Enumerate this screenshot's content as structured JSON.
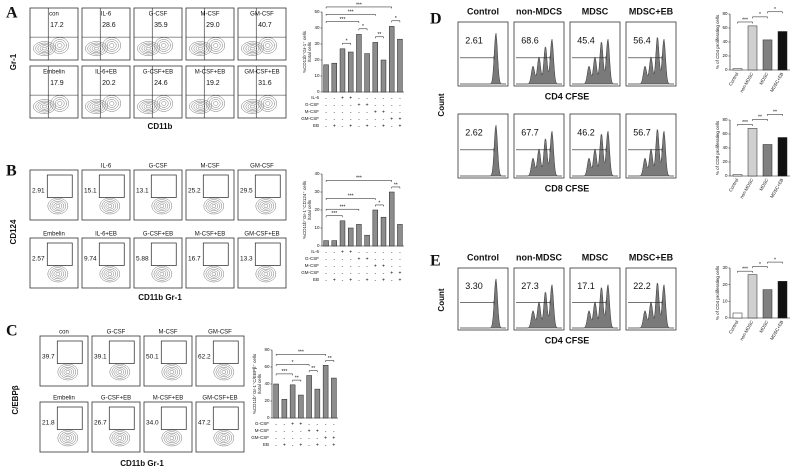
{
  "panels": [
    {
      "letter": "A",
      "y_label": "Gr-1",
      "x_label": "CD11b",
      "rows": [
        [
          {
            "label": "con",
            "value": "17.2"
          },
          {
            "label": "IL-6",
            "value": "28.6"
          },
          {
            "label": "G-CSF",
            "value": "35.9"
          },
          {
            "label": "M-CSF",
            "value": "29.0"
          },
          {
            "label": "GM-CSF",
            "value": "40.7"
          }
        ],
        [
          {
            "label": "Embelin",
            "value": "17.9"
          },
          {
            "label": "IL-6+EB",
            "value": "20.2"
          },
          {
            "label": "G-CSF+EB",
            "value": "24.6"
          },
          {
            "label": "M-CSF+EB",
            "value": "19.2"
          },
          {
            "label": "GM-CSF+EB",
            "value": "31.6"
          }
        ]
      ],
      "chart": {
        "type": "bar",
        "y_label": [
          "%CD11b⁺Gr-1⁺ cells",
          "/total cells"
        ],
        "values": [
          17,
          18,
          27,
          25,
          36,
          24,
          31,
          20,
          41,
          33
        ],
        "color": "#8c8c8c",
        "ylim": [
          0,
          50
        ],
        "yticks": [
          0,
          10,
          20,
          30,
          40,
          50
        ],
        "treatments": [
          {
            "name": "IL-6",
            "signs": [
              "-",
              "-",
              "+",
              "+",
              "-",
              "-",
              "-",
              "-",
              "-",
              "-"
            ]
          },
          {
            "name": "G-CSF",
            "signs": [
              "-",
              "-",
              "-",
              "-",
              "+",
              "+",
              "-",
              "-",
              "-",
              "-"
            ]
          },
          {
            "name": "M-CSF",
            "signs": [
              "-",
              "-",
              "-",
              "-",
              "-",
              "-",
              "+",
              "+",
              "-",
              "-"
            ]
          },
          {
            "name": "GM-CSF",
            "signs": [
              "-",
              "-",
              "-",
              "-",
              "-",
              "-",
              "-",
              "-",
              "+",
              "+"
            ]
          },
          {
            "name": "EB",
            "signs": [
              "-",
              "+",
              "-",
              "+",
              "-",
              "+",
              "-",
              "+",
              "-",
              "+"
            ]
          }
        ],
        "significance": [
          "***",
          "***",
          "***",
          "*",
          "*",
          "**",
          "*"
        ]
      }
    },
    {
      "letter": "B",
      "y_label": "CD124",
      "x_label": "CD11b Gr-1",
      "rows": [
        [
          {
            "value": "2.91"
          },
          {
            "label": "IL-6",
            "value": "15.1"
          },
          {
            "label": "G-CSF",
            "value": "13.1"
          },
          {
            "label": "M-CSF",
            "value": "25.2"
          },
          {
            "label": "GM-CSF",
            "value": "29.5"
          }
        ],
        [
          {
            "label": "Embelin",
            "value": "2.57"
          },
          {
            "label": "IL-6+EB",
            "value": "9.74"
          },
          {
            "label": "G-CSF+EB",
            "value": "5.88"
          },
          {
            "label": "M-CSF+EB",
            "value": "16.7"
          },
          {
            "label": "GM-CSF+EB",
            "value": "13.3"
          }
        ]
      ],
      "chart": {
        "type": "bar",
        "y_label": [
          "%CD11b⁺Gr-1⁺CD124⁺ cells",
          "/total cells"
        ],
        "values": [
          3,
          3,
          14,
          10,
          12,
          6,
          20,
          16,
          30,
          12
        ],
        "color": "#8c8c8c",
        "ylim": [
          0,
          40
        ],
        "yticks": [
          0,
          10,
          20,
          30,
          40
        ],
        "treatments": [
          {
            "name": "IL-6",
            "signs": [
              "-",
              "-",
              "+",
              "+",
              "-",
              "-",
              "-",
              "-",
              "-",
              "-"
            ]
          },
          {
            "name": "G-CSF",
            "signs": [
              "-",
              "-",
              "-",
              "-",
              "+",
              "+",
              "-",
              "-",
              "-",
              "-"
            ]
          },
          {
            "name": "M-CSF",
            "signs": [
              "-",
              "-",
              "-",
              "-",
              "-",
              "-",
              "+",
              "+",
              "-",
              "-"
            ]
          },
          {
            "name": "GM-CSF",
            "signs": [
              "-",
              "-",
              "-",
              "-",
              "-",
              "-",
              "-",
              "-",
              "+",
              "+"
            ]
          },
          {
            "name": "EB",
            "signs": [
              "-",
              "+",
              "-",
              "+",
              "-",
              "+",
              "-",
              "+",
              "-",
              "+"
            ]
          }
        ],
        "significance": [
          "***",
          "**",
          "***",
          "***",
          "***",
          "*"
        ]
      }
    },
    {
      "letter": "C",
      "y_label": "C/EBPβ",
      "x_label": "CD11b Gr-1",
      "rows": [
        [
          {
            "label": "con",
            "value": "39.7"
          },
          {
            "label": "G-CSF",
            "value": "39.1"
          },
          {
            "label": "M-CSF",
            "value": "50.1"
          },
          {
            "label": "GM-CSF",
            "value": "62.2"
          }
        ],
        [
          {
            "label": "Embelin",
            "value": "21.8"
          },
          {
            "label": "G-CSF+EB",
            "value": "26.7"
          },
          {
            "label": "M-CSF+EB",
            "value": "34.0"
          },
          {
            "label": "GM-CSF+EB",
            "value": "47.2"
          }
        ]
      ],
      "chart": {
        "type": "bar",
        "y_label": [
          "%CD11b⁺Gr-1⁺C/EBPβ⁺ cells",
          "/total cells"
        ],
        "values": [
          40,
          22,
          39,
          27,
          50,
          34,
          62,
          47
        ],
        "color": "#8c8c8c",
        "ylim": [
          0,
          80
        ],
        "yticks": [
          0,
          20,
          40,
          60,
          80
        ],
        "treatments": [
          {
            "name": "G-CSF",
            "signs": [
              "-",
              "-",
              "+",
              "+",
              "-",
              "-",
              "-",
              "-"
            ]
          },
          {
            "name": "M-CSF",
            "signs": [
              "-",
              "-",
              "-",
              "-",
              "+",
              "+",
              "-",
              "-"
            ]
          },
          {
            "name": "GM-CSF",
            "signs": [
              "-",
              "-",
              "-",
              "-",
              "-",
              "-",
              "+",
              "+"
            ]
          },
          {
            "name": "EB",
            "signs": [
              "-",
              "+",
              "-",
              "+",
              "-",
              "+",
              "-",
              "+"
            ]
          }
        ],
        "significance": [
          "***",
          "*",
          "***",
          "**",
          "**",
          "**"
        ]
      }
    },
    {
      "letter": "D",
      "y_label": "Count",
      "headers": [
        "Control",
        "non-MDCS",
        "MDSC",
        "MDSC+EB"
      ],
      "rows": [
        {
          "values": [
            "2.61",
            "68.6",
            "45.4",
            "56.4"
          ],
          "x_label": "CD4 CFSE",
          "chart": {
            "type": "bar",
            "y_label": [
              "% of CD4 proliferating cells"
            ],
            "categories": [
              "Control",
              "non-MDSC",
              "MDSC",
              "MDSC+EB"
            ],
            "values": [
              2,
              63,
              43,
              55
            ],
            "colors": [
              "#ffffff",
              "#d0d0d0",
              "#808080",
              "#111111"
            ],
            "ylim": [
              0,
              80
            ],
            "yticks": [
              0,
              20,
              40,
              60,
              80
            ],
            "significance": [
              "***",
              "*",
              "*"
            ]
          }
        },
        {
          "values": [
            "2.62",
            "67.7",
            "46.2",
            "56.7"
          ],
          "x_label": "CD8 CFSE",
          "chart": {
            "type": "bar",
            "y_label": [
              "% of CD8 proliferating cells"
            ],
            "categories": [
              "Control",
              "non-MDSC",
              "MDSC",
              "MDSC+EB"
            ],
            "values": [
              2,
              68,
              45,
              55
            ],
            "colors": [
              "#ffffff",
              "#d0d0d0",
              "#808080",
              "#111111"
            ],
            "ylim": [
              0,
              80
            ],
            "yticks": [
              0,
              20,
              40,
              60,
              80
            ],
            "significance": [
              "***",
              "**",
              "**"
            ]
          }
        }
      ]
    },
    {
      "letter": "E",
      "y_label": "Count",
      "headers": [
        "Control",
        "non-MDSC",
        "MDSC",
        "MDSC+EB"
      ],
      "rows": [
        {
          "values": [
            "3.30",
            "27.3",
            "17.1",
            "22.2"
          ],
          "x_label": "CD4 CFSE",
          "chart": {
            "type": "bar",
            "y_label": [
              "% of CD4 proliferating cells"
            ],
            "categories": [
              "Control",
              "non-MDSC",
              "MDSC",
              "MDSC+EB"
            ],
            "values": [
              3,
              26,
              17,
              22
            ],
            "colors": [
              "#ffffff",
              "#d0d0d0",
              "#808080",
              "#111111"
            ],
            "ylim": [
              0,
              30
            ],
            "yticks": [
              0,
              10,
              20,
              30
            ],
            "significance": [
              "***",
              "*",
              "*"
            ]
          }
        }
      ]
    }
  ]
}
